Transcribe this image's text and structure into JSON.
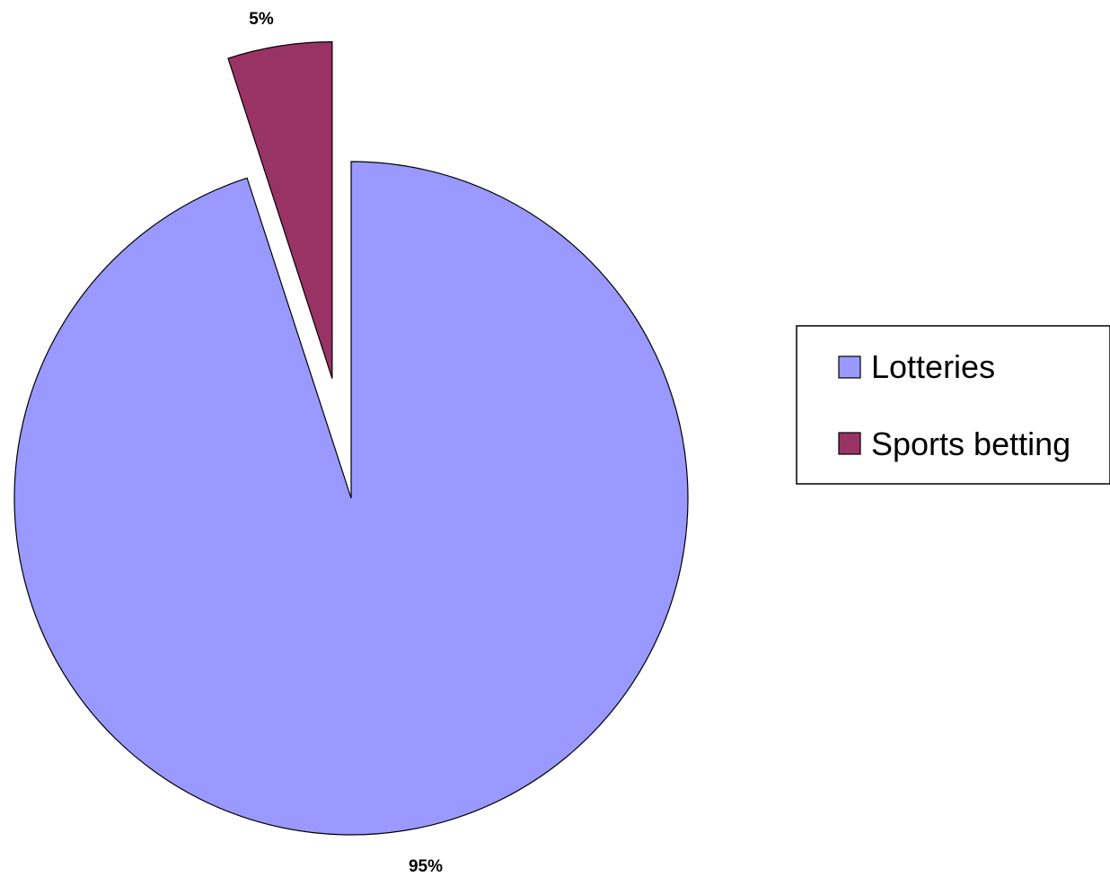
{
  "chart_data": {
    "type": "pie",
    "title": "",
    "categories": [
      "Lotteries",
      "Sports betting"
    ],
    "values": [
      95,
      5
    ],
    "data_labels": [
      "95%",
      "5%"
    ],
    "colors": [
      "#9999ff",
      "#993366"
    ],
    "exploded": [
      false,
      true
    ],
    "legend": {
      "position": "right",
      "entries": [
        "Lotteries",
        "Sports betting"
      ]
    }
  }
}
